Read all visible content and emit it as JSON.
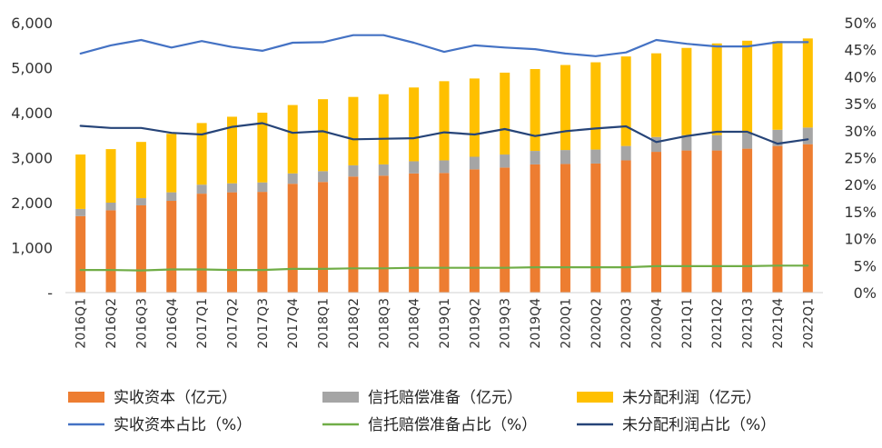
{
  "chart_data": {
    "type": "bar",
    "stacked": true,
    "categories": [
      "2016Q1",
      "2016Q2",
      "2016Q3",
      "2016Q4",
      "2017Q1",
      "2017Q2",
      "2017Q3",
      "2017Q4",
      "2018Q1",
      "2018Q2",
      "2018Q3",
      "2018Q4",
      "2019Q1",
      "2019Q2",
      "2019Q3",
      "2019Q4",
      "2020Q1",
      "2020Q2",
      "2020Q3",
      "2020Q4",
      "2021Q1",
      "2021Q2",
      "2021Q3",
      "2021Q4",
      "2022Q1"
    ],
    "left_axis": {
      "ylim": [
        0,
        6000
      ],
      "ticks": [
        0,
        1000,
        2000,
        3000,
        4000,
        5000,
        6000
      ],
      "tick_labels": [
        "-",
        "1,000",
        "2,000",
        "3,000",
        "4,000",
        "5,000",
        "6,000"
      ]
    },
    "right_axis": {
      "ylim": [
        0,
        50
      ],
      "ticks": [
        0,
        5,
        10,
        15,
        20,
        25,
        30,
        35,
        40,
        45,
        50
      ],
      "tick_labels": [
        "0%",
        "5%",
        "10%",
        "15%",
        "20%",
        "25%",
        "30%",
        "35%",
        "40%",
        "45%",
        "50%"
      ]
    },
    "bar_series": [
      {
        "name": "实收资本（亿元）",
        "color": "#ED7D31",
        "values": [
          1700,
          1830,
          1940,
          2040,
          2200,
          2230,
          2240,
          2420,
          2460,
          2580,
          2600,
          2650,
          2660,
          2740,
          2780,
          2850,
          2860,
          2870,
          2940,
          3130,
          3160,
          3160,
          3200,
          3260,
          3300
        ]
      },
      {
        "name": "信托赔偿准备（亿元）",
        "color": "#A5A5A5",
        "values": [
          160,
          170,
          160,
          190,
          200,
          200,
          210,
          230,
          240,
          250,
          250,
          270,
          280,
          280,
          290,
          300,
          310,
          310,
          320,
          330,
          340,
          340,
          350,
          360,
          370
        ]
      },
      {
        "name": "未分配利润（亿元）",
        "color": "#FFC000",
        "values": [
          1210,
          1190,
          1250,
          1300,
          1370,
          1480,
          1550,
          1520,
          1600,
          1520,
          1560,
          1640,
          1760,
          1740,
          1820,
          1820,
          1890,
          1940,
          1990,
          1860,
          1940,
          2040,
          2050,
          1970,
          1980
        ]
      }
    ],
    "line_series": [
      {
        "name": "实收资本占比（%）",
        "color": "#4472C4",
        "values": [
          44.3,
          45.8,
          46.8,
          45.4,
          46.6,
          45.5,
          44.8,
          46.3,
          46.4,
          47.7,
          47.7,
          46.3,
          44.6,
          45.8,
          45.4,
          45.1,
          44.3,
          43.8,
          44.5,
          46.8,
          46.1,
          45.6,
          45.6,
          46.4,
          46.4
        ]
      },
      {
        "name": "信托赔偿准备占比（%）",
        "color": "#70AD47",
        "values": [
          4.2,
          4.2,
          4.1,
          4.3,
          4.3,
          4.2,
          4.2,
          4.4,
          4.4,
          4.5,
          4.5,
          4.6,
          4.6,
          4.6,
          4.6,
          4.7,
          4.7,
          4.7,
          4.7,
          4.9,
          4.9,
          4.9,
          4.9,
          5.0,
          5.0
        ]
      },
      {
        "name": "未分配利润占比（%）",
        "color": "#264478",
        "values": [
          30.9,
          30.5,
          30.5,
          29.6,
          29.3,
          30.7,
          31.4,
          29.6,
          29.9,
          28.4,
          28.5,
          28.6,
          29.7,
          29.3,
          30.3,
          29.0,
          29.9,
          30.4,
          30.8,
          27.9,
          29.0,
          29.8,
          29.8,
          27.6,
          28.4
        ]
      }
    ],
    "legend": [
      "实收资本（亿元）",
      "信托赔偿准备（亿元）",
      "未分配利润（亿元）",
      "实收资本占比（%）",
      "信托赔偿准备占比（%）",
      "未分配利润占比（%）"
    ],
    "legend_position": "bottom",
    "grid": false
  }
}
